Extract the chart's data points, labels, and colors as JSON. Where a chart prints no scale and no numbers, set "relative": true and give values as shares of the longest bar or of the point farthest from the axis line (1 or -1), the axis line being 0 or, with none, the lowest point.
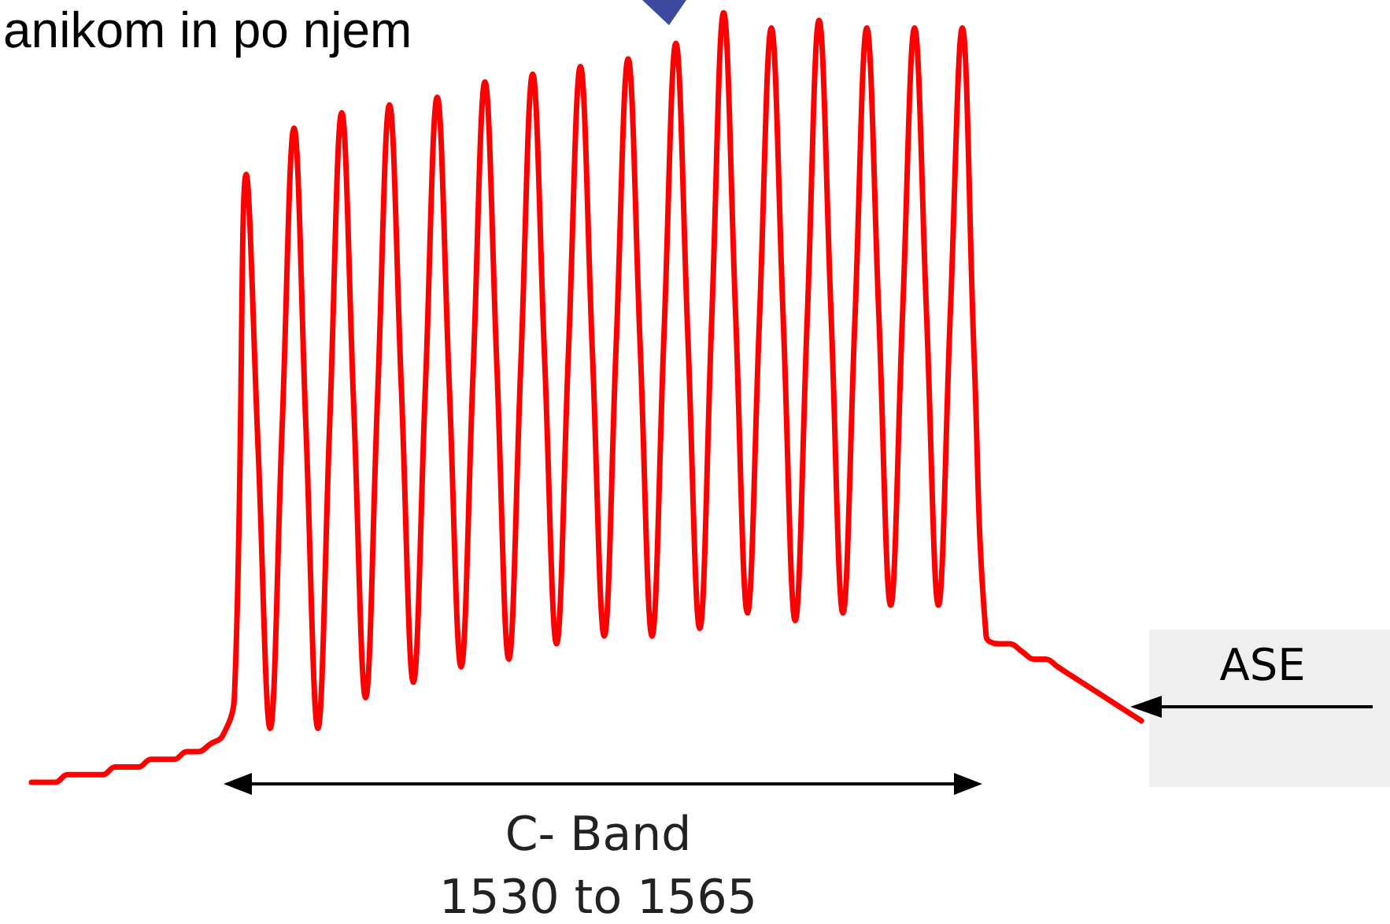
{
  "chart_data": {
    "type": "line",
    "relative": true,
    "grid": false,
    "marker": "none",
    "line_style": "solid",
    "categories": [
      null,
      null,
      null,
      null,
      null,
      null,
      null,
      null,
      null,
      null,
      null,
      null,
      null,
      null,
      null,
      null,
      null,
      null,
      null,
      null,
      null,
      null,
      null,
      null,
      null,
      null,
      null,
      null,
      null,
      null,
      null,
      null,
      null,
      null,
      null,
      null,
      null,
      null,
      null,
      null,
      null,
      null,
      null,
      null,
      null,
      null,
      null,
      null,
      null,
      null,
      null,
      null,
      null,
      null,
      null,
      null,
      null,
      null,
      null,
      null,
      null,
      null,
      null,
      null,
      null,
      null,
      null,
      null,
      null,
      null,
      null,
      null,
      null,
      null,
      null,
      null,
      null,
      null,
      null,
      null,
      null,
      null,
      null,
      null,
      null,
      null,
      null,
      null,
      null,
      null,
      null,
      null,
      null,
      null
    ],
    "series": [
      {
        "color": "#ff0000",
        "values": [
          0,
          0,
          0,
          0.01,
          0.01,
          0.01,
          0.01,
          0.02,
          0.02,
          0.02,
          0.03,
          0.03,
          0.03,
          0.04,
          0.04,
          0.05,
          0.06,
          0.11,
          0.79,
          0.43,
          0.07,
          0.46,
          0.85,
          0.46,
          0.07,
          0.47,
          0.87,
          0.49,
          0.11,
          0.5,
          0.88,
          0.51,
          0.13,
          0.51,
          0.89,
          0.52,
          0.15,
          0.53,
          0.91,
          0.54,
          0.16,
          0.54,
          0.92,
          0.55,
          0.18,
          0.56,
          0.93,
          0.56,
          0.19,
          0.57,
          0.94,
          0.57,
          0.19,
          0.58,
          0.96,
          0.58,
          0.2,
          0.6,
          1,
          0.61,
          0.22,
          0.6,
          0.98,
          0.6,
          0.21,
          0.6,
          0.99,
          0.61,
          0.22,
          0.6,
          0.98,
          0.61,
          0.23,
          0.61,
          0.98,
          0.61,
          0.23,
          0.61,
          0.98,
          0.55,
          0.19,
          0.18,
          0.18,
          0.17,
          0.16,
          0.16,
          0.15,
          0.14,
          0.13,
          0.12,
          0.11,
          0.1,
          0.09,
          0.08
        ]
      }
    ],
    "annotations": [
      "anikom in po njem",
      "ASE",
      "C- Band\n1530 to 1565"
    ]
  }
}
